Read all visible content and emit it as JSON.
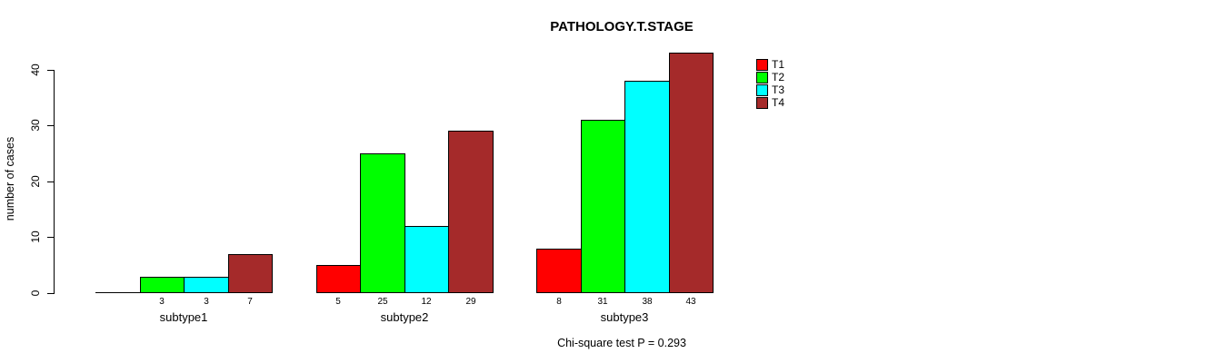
{
  "figure": {
    "title": "PATHOLOGY.T.STAGE",
    "note": "Chi-square test P = 0.293"
  },
  "chart_data": {
    "type": "bar",
    "grouped": true,
    "title": "PATHOLOGY.T.STAGE",
    "xlabel": "",
    "ylabel": "number of cases",
    "categories": [
      "subtype1",
      "subtype2",
      "subtype3"
    ],
    "series": [
      {
        "name": "T1",
        "color": "#ff0000",
        "values": [
          0,
          5,
          8
        ]
      },
      {
        "name": "T2",
        "color": "#00ff00",
        "values": [
          3,
          25,
          31
        ]
      },
      {
        "name": "T3",
        "color": "#00ffff",
        "values": [
          3,
          12,
          38
        ]
      },
      {
        "name": "T4",
        "color": "#a52a2a",
        "values": [
          7,
          29,
          43
        ]
      }
    ],
    "bar_value_labels": [
      [
        "",
        "3",
        "3",
        "7"
      ],
      [
        "5",
        "25",
        "12",
        "29"
      ],
      [
        "8",
        "31",
        "38",
        "43"
      ]
    ],
    "yticks": [
      0,
      10,
      20,
      30,
      40
    ],
    "ylim": [
      0,
      43
    ],
    "grid": false,
    "legend_position": "top-right",
    "legend_entries": [
      "T1",
      "T2",
      "T3",
      "T4"
    ],
    "annotation": "Chi-square test P = 0.293",
    "axis_color": "#000000",
    "background_color": "#ffffff"
  }
}
